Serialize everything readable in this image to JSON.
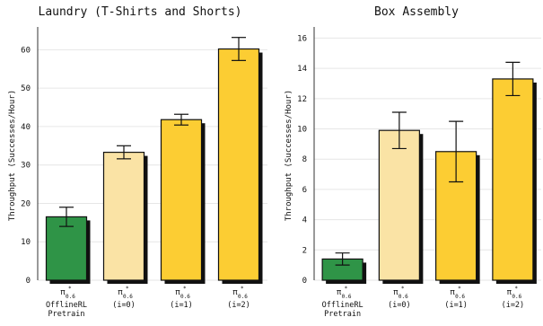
{
  "chart_data": [
    {
      "type": "bar",
      "title": "Laundry (T-Shirts and Shorts)",
      "ylabel": "Throughput (Successes/Hour)",
      "ylim": [
        0,
        65
      ],
      "yticks": [
        0,
        10,
        20,
        30,
        40,
        50,
        60
      ],
      "grid": true,
      "categories": [
        {
          "symbol": "π",
          "sup": "*",
          "sub": "0.6",
          "lines": [
            "OfflineRL",
            "Pretrain"
          ]
        },
        {
          "symbol": "π",
          "sup": "*",
          "sub": "0.6",
          "lines": [
            "(i=0)"
          ]
        },
        {
          "symbol": "π",
          "sup": "*",
          "sub": "0.6",
          "lines": [
            "(i=1)"
          ]
        },
        {
          "symbol": "π",
          "sup": "*",
          "sub": "0.6",
          "lines": [
            "(i=2)"
          ]
        }
      ],
      "values": [
        16.5,
        33.3,
        41.8,
        60.2
      ],
      "errors": [
        2.5,
        1.7,
        1.4,
        3.0
      ],
      "colors": [
        "#2f9447",
        "#fae3a5",
        "#fccd33",
        "#fccd33"
      ]
    },
    {
      "type": "bar",
      "title": "Box Assembly",
      "ylabel": "Throughput (Successes/Hour)",
      "ylim": [
        0,
        16.5
      ],
      "yticks": [
        0,
        2,
        4,
        6,
        8,
        10,
        12,
        14,
        16
      ],
      "grid": true,
      "categories": [
        {
          "symbol": "π",
          "sup": "*",
          "sub": "0.6",
          "lines": [
            "OfflineRL",
            "Pretrain"
          ]
        },
        {
          "symbol": "π",
          "sup": "*",
          "sub": "0.6",
          "lines": [
            "(i=0)"
          ]
        },
        {
          "symbol": "π",
          "sup": "*",
          "sub": "0.6",
          "lines": [
            "(i=1)"
          ]
        },
        {
          "symbol": "π",
          "sup": "*",
          "sub": "0.6",
          "lines": [
            "(i=2)"
          ]
        }
      ],
      "values": [
        1.4,
        9.9,
        8.5,
        13.3
      ],
      "errors": [
        0.4,
        1.2,
        2.0,
        1.1
      ],
      "colors": [
        "#2f9447",
        "#fae3a5",
        "#fccd33",
        "#fccd33"
      ]
    }
  ]
}
